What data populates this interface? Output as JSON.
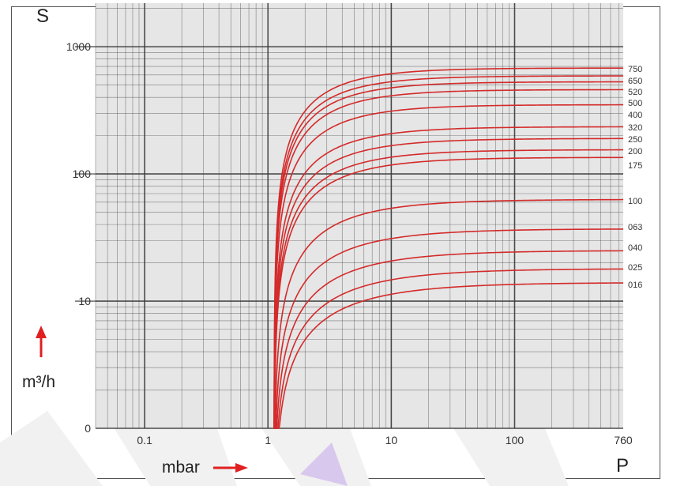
{
  "chart_data": {
    "type": "line",
    "x_scale": "log",
    "x_ticks": [
      "0.1",
      "1",
      "10",
      "100",
      "760"
    ],
    "y_ticks": [
      "1000",
      "100",
      "10",
      "0"
    ],
    "y_axis_letter": "S",
    "x_axis_letter": "P",
    "y_unit": "m³/h",
    "x_unit": "mbar",
    "x_range": [
      0.04,
      760
    ],
    "y_range": [
      1,
      2200
    ],
    "grid": true,
    "curve_start_pressure": 1.12,
    "series": [
      {
        "name": "750",
        "plateau": 680
      },
      {
        "name": "650",
        "plateau": 590
      },
      {
        "name": "520",
        "plateau": 530
      },
      {
        "name": "500",
        "plateau": 460
      },
      {
        "name": "400",
        "plateau": 350
      },
      {
        "name": "320",
        "plateau": 235
      },
      {
        "name": "250",
        "plateau": 190
      },
      {
        "name": "200",
        "plateau": 155
      },
      {
        "name": "175",
        "plateau": 135
      },
      {
        "name": "100",
        "plateau": 63
      },
      {
        "name": "063",
        "plateau": 37
      },
      {
        "name": "040",
        "plateau": 25
      },
      {
        "name": "025",
        "plateau": 18
      },
      {
        "name": "016",
        "plateau": 14
      }
    ],
    "colors": {
      "curve": "#d42a2a",
      "grid": "#3a3a3a",
      "plot_bg": "#e6e6e6",
      "arrow": "#e02020"
    }
  }
}
